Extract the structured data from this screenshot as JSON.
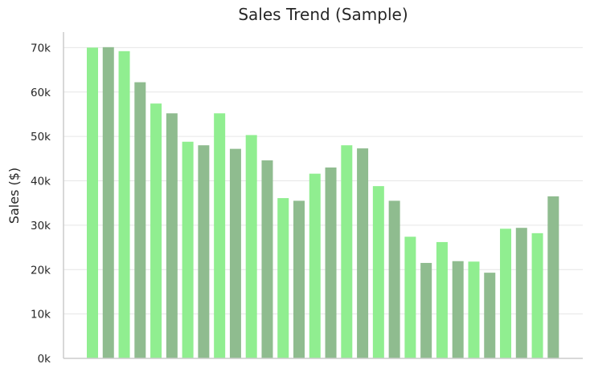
{
  "chart_data": {
    "type": "bar",
    "title": "Sales Trend (Sample)",
    "xlabel": "",
    "ylabel": "Sales ($)",
    "ylim": [
      0,
      73500
    ],
    "yticks": [
      {
        "value": 0,
        "label": "0k"
      },
      {
        "value": 10000,
        "label": "10k"
      },
      {
        "value": 20000,
        "label": "20k"
      },
      {
        "value": 30000,
        "label": "30k"
      },
      {
        "value": 40000,
        "label": "40k"
      },
      {
        "value": 50000,
        "label": "50k"
      },
      {
        "value": 60000,
        "label": "60k"
      },
      {
        "value": 70000,
        "label": "70k"
      }
    ],
    "grid": true,
    "bar_colors": [
      "#90ee90",
      "#8fbc8f"
    ],
    "values": [
      70000,
      70100,
      69200,
      62200,
      57400,
      55200,
      48800,
      48000,
      55200,
      47200,
      50300,
      44600,
      36100,
      35500,
      41600,
      43000,
      48000,
      47300,
      38800,
      35500,
      27400,
      21500,
      26200,
      21900,
      21800,
      19300,
      29200,
      29400,
      28200,
      36500
    ]
  }
}
